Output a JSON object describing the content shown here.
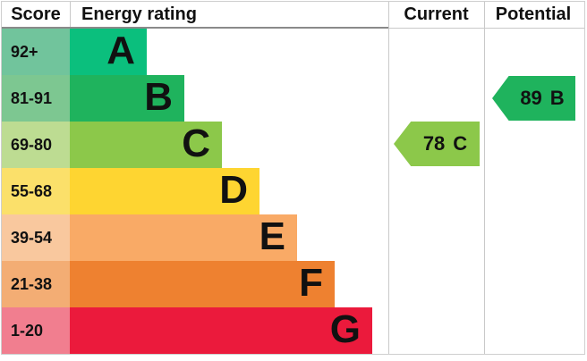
{
  "header": {
    "score": "Score",
    "energy_rating": "Energy rating",
    "current": "Current",
    "potential": "Potential"
  },
  "chart_data": {
    "type": "bar",
    "orientation": "horizontal",
    "title": "Energy rating",
    "categories": [
      "A",
      "B",
      "C",
      "D",
      "E",
      "F",
      "G"
    ],
    "score_ranges": [
      "92+",
      "81-91",
      "69-80",
      "55-68",
      "39-54",
      "21-38",
      "1-20"
    ],
    "bands": [
      {
        "letter": "A",
        "score_range": "92+",
        "bar_color": "#0bbf7d",
        "score_bg_color": "#71c49c"
      },
      {
        "letter": "B",
        "score_range": "81-91",
        "bar_color": "#1fb35d",
        "score_bg_color": "#7dc791"
      },
      {
        "letter": "C",
        "score_range": "69-80",
        "bar_color": "#8cc84a",
        "score_bg_color": "#bddc92"
      },
      {
        "letter": "D",
        "score_range": "55-68",
        "bar_color": "#fed531",
        "score_bg_color": "#fbe06a"
      },
      {
        "letter": "E",
        "score_range": "39-54",
        "bar_color": "#f9aa66",
        "score_bg_color": "#f9c89e"
      },
      {
        "letter": "F",
        "score_range": "21-38",
        "bar_color": "#ee8130",
        "score_bg_color": "#f3ad74"
      },
      {
        "letter": "G",
        "score_range": "1-20",
        "bar_color": "#eb1a3c",
        "score_bg_color": "#f17e8f"
      }
    ],
    "current": {
      "value": "78",
      "band": "C",
      "arrow_color": "#8cc84a"
    },
    "potential": {
      "value": "89",
      "band": "B",
      "arrow_color": "#1fb35d"
    }
  }
}
